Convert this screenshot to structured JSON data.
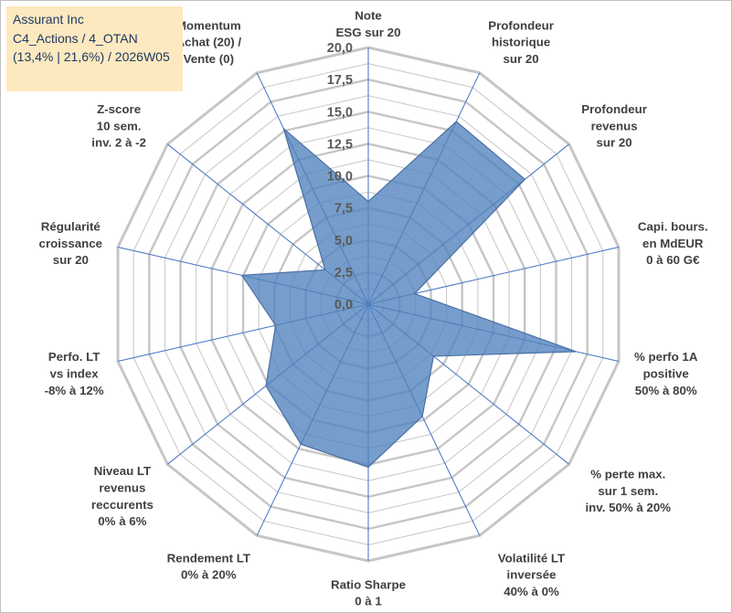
{
  "info_box": {
    "company": "Assurant Inc",
    "category": "C4_Actions / 4_OTAN",
    "perf": "(13,4% | 21,6%) / 2026W05"
  },
  "chart_data": {
    "type": "radar",
    "title": "",
    "rlim": [
      0,
      20
    ],
    "ticks": [
      "0,0",
      "2,5",
      "5,0",
      "7,5",
      "10,0",
      "12,5",
      "15,0",
      "17,5",
      "20,0"
    ],
    "grid": true,
    "axes": [
      {
        "lines": [
          "Note",
          "ESG sur 20"
        ]
      },
      {
        "lines": [
          "Profondeur",
          "historique",
          "sur 20"
        ]
      },
      {
        "lines": [
          "Profondeur",
          "revenus",
          "sur 20"
        ]
      },
      {
        "lines": [
          "Capi. bours.",
          "en MdEUR",
          "0 à 60 G€"
        ]
      },
      {
        "lines": [
          "% perfo 1A",
          "positive",
          "50% à 80%"
        ]
      },
      {
        "lines": [
          "% perte max.",
          "sur 1 sem.",
          "inv. 50% à 20%"
        ]
      },
      {
        "lines": [
          "Volatilité LT",
          "inversée",
          "40% à 0%"
        ]
      },
      {
        "lines": [
          "Ratio Sharpe",
          "0 à 1"
        ]
      },
      {
        "lines": [
          "Rendement LT",
          "0% à 20%"
        ]
      },
      {
        "lines": [
          "Niveau LT",
          "revenus",
          "reccurents",
          "0% à 6%"
        ]
      },
      {
        "lines": [
          "Perfo. LT",
          "vs index",
          "-8% à 12%"
        ]
      },
      {
        "lines": [
          "Régularité",
          "croissance",
          "sur 20"
        ]
      },
      {
        "lines": [
          "Z-score",
          "10 sem.",
          "inv. 2 à -2"
        ]
      },
      {
        "lines": [
          "Momentum",
          "Achat (20) /",
          "Vente (0)"
        ]
      }
    ],
    "series": [
      {
        "name": "Assurant Inc",
        "values": [
          8.0,
          15.8,
          15.6,
          3.7,
          16.6,
          6.5,
          9.7,
          12.7,
          12.1,
          10.2,
          7.4,
          10.1,
          4.3,
          15.2
        ],
        "fill": "#4f81bd",
        "fill_opacity": 0.78,
        "stroke": "#4a6fa5"
      }
    ],
    "colors": {
      "grid": "#c6c6c6",
      "spokes": "#4472c4"
    }
  }
}
